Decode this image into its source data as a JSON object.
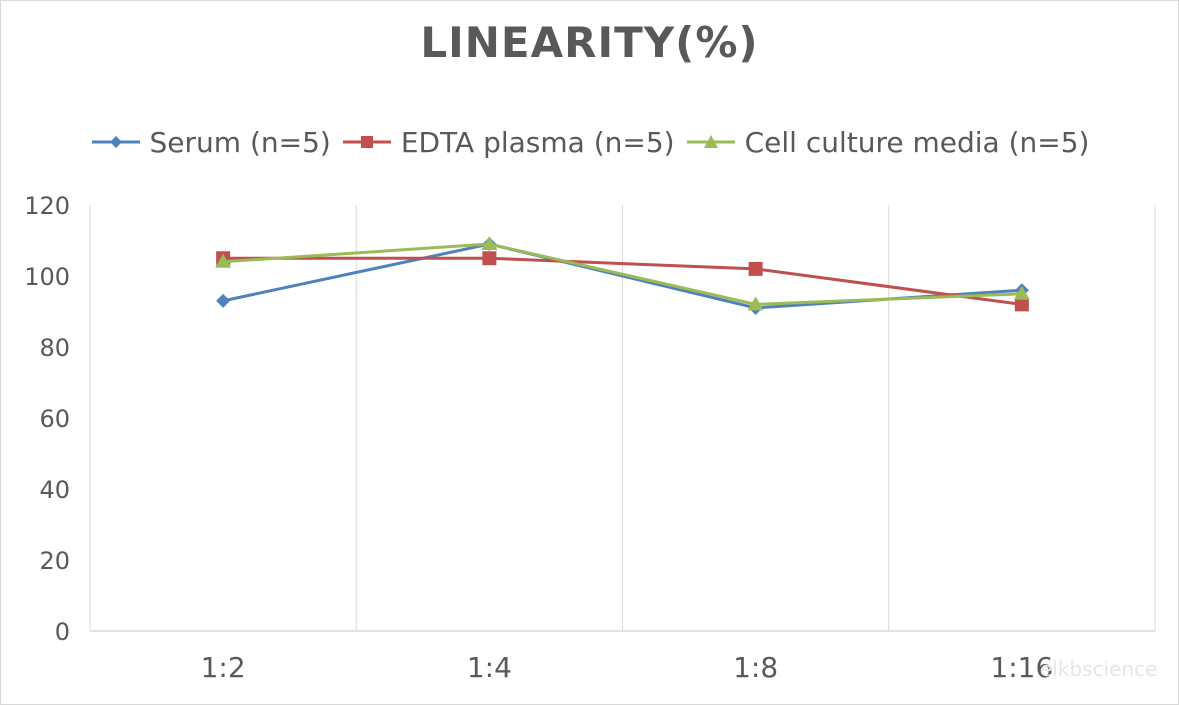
{
  "chart_data": {
    "type": "line",
    "title": "LINEARITY(%)",
    "xlabel": "",
    "ylabel": "",
    "categories": [
      "1:2",
      "1:4",
      "1:8",
      "1:16"
    ],
    "ylim": [
      0,
      120
    ],
    "yticks": [
      0,
      20,
      40,
      60,
      80,
      100,
      120
    ],
    "grid": "vertical",
    "legend_position": "top",
    "series": [
      {
        "name": "Serum (n=5)",
        "values": [
          93,
          109,
          91,
          96
        ],
        "color": "#4f81bd",
        "marker": "diamond"
      },
      {
        "name": "EDTA plasma (n=5)",
        "values": [
          105,
          105,
          102,
          92
        ],
        "color": "#c0504d",
        "marker": "square"
      },
      {
        "name": "Cell culture media (n=5)",
        "values": [
          104,
          109,
          92,
          95
        ],
        "color": "#9bbb59",
        "marker": "triangle"
      }
    ]
  },
  "watermark": "elkbscience"
}
